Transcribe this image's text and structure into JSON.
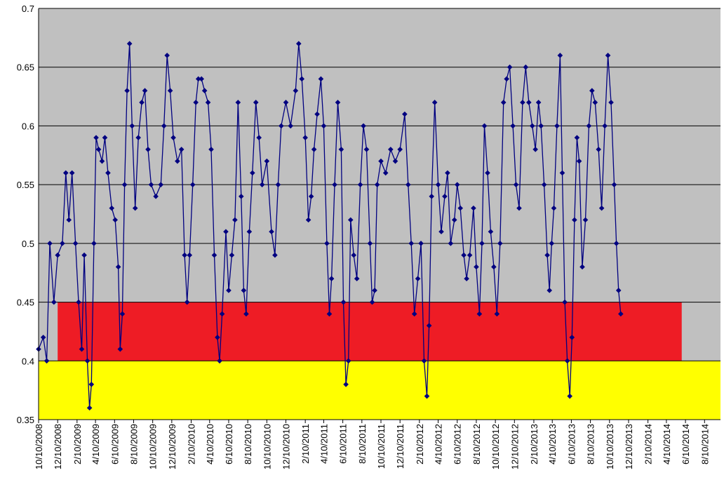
{
  "chart_data": {
    "type": "line",
    "title": "",
    "xlabel": "",
    "ylabel": "",
    "ylim": [
      0.35,
      0.7
    ],
    "y_ticks": [
      "0.35",
      "0.4",
      "0.45",
      "0.5",
      "0.55",
      "0.6",
      "0.65",
      "0.7"
    ],
    "x_range": [
      "2008-10-10",
      "2014-09-30"
    ],
    "x_tick_labels": [
      "10/10/2008",
      "12/10/2008",
      "2/10/2009",
      "4/10/2009",
      "6/10/2009",
      "8/10/2009",
      "10/10/2009",
      "12/10/2009",
      "2/10/2010",
      "4/10/2010",
      "6/10/2010",
      "8/10/2010",
      "10/10/2010",
      "12/10/2010",
      "2/10/2011",
      "4/10/2011",
      "6/10/2011",
      "8/10/2011",
      "10/10/2011",
      "12/10/2011",
      "2/10/2012",
      "4/10/2012",
      "6/10/2012",
      "8/10/2012",
      "10/10/2012",
      "12/10/2012",
      "2/10/2013",
      "4/10/2013",
      "6/10/2013",
      "8/10/2013",
      "10/10/2013",
      "12/10/2013",
      "2/10/2014",
      "4/10/2014",
      "6/10/2014",
      "8/10/2014"
    ],
    "grid": "horizontal",
    "legend": "none",
    "colors": {
      "plot_bg": "#c0c0c0",
      "band_red": "#ee1c25",
      "band_yellow": "#ffff00",
      "series": "#000080",
      "grid": "#000000"
    },
    "bands": [
      {
        "name": "red",
        "y0": 0.4,
        "y1": 0.45,
        "x0": "2008-12-10",
        "x1": "2014-05-29",
        "color": "#ee1c25"
      },
      {
        "name": "yellow",
        "y0": 0.35,
        "y1": 0.4,
        "x0": "2008-10-10",
        "x1": "2014-09-30",
        "color": "#ffff00"
      }
    ],
    "series": [
      {
        "marker": "diamond",
        "points": [
          [
            "2008-10-10",
            0.41
          ],
          [
            "2008-10-25",
            0.42
          ],
          [
            "2008-11-05",
            0.4
          ],
          [
            "2008-11-15",
            0.5
          ],
          [
            "2008-11-28",
            0.45
          ],
          [
            "2008-12-10",
            0.49
          ],
          [
            "2008-12-25",
            0.5
          ],
          [
            "2009-01-05",
            0.56
          ],
          [
            "2009-01-15",
            0.52
          ],
          [
            "2009-01-25",
            0.56
          ],
          [
            "2009-02-05",
            0.5
          ],
          [
            "2009-02-15",
            0.45
          ],
          [
            "2009-02-25",
            0.41
          ],
          [
            "2009-03-05",
            0.49
          ],
          [
            "2009-03-15",
            0.4
          ],
          [
            "2009-03-22",
            0.36
          ],
          [
            "2009-03-28",
            0.38
          ],
          [
            "2009-04-05",
            0.5
          ],
          [
            "2009-04-12",
            0.59
          ],
          [
            "2009-04-20",
            0.58
          ],
          [
            "2009-05-01",
            0.57
          ],
          [
            "2009-05-10",
            0.59
          ],
          [
            "2009-05-20",
            0.56
          ],
          [
            "2009-06-01",
            0.53
          ],
          [
            "2009-06-12",
            0.52
          ],
          [
            "2009-06-22",
            0.48
          ],
          [
            "2009-06-28",
            0.41
          ],
          [
            "2009-07-05",
            0.44
          ],
          [
            "2009-07-12",
            0.55
          ],
          [
            "2009-07-20",
            0.63
          ],
          [
            "2009-07-28",
            0.67
          ],
          [
            "2009-08-05",
            0.6
          ],
          [
            "2009-08-15",
            0.53
          ],
          [
            "2009-08-25",
            0.59
          ],
          [
            "2009-09-05",
            0.62
          ],
          [
            "2009-09-15",
            0.63
          ],
          [
            "2009-09-25",
            0.58
          ],
          [
            "2009-10-05",
            0.55
          ],
          [
            "2009-10-20",
            0.54
          ],
          [
            "2009-11-05",
            0.55
          ],
          [
            "2009-11-15",
            0.6
          ],
          [
            "2009-11-25",
            0.66
          ],
          [
            "2009-12-05",
            0.63
          ],
          [
            "2009-12-15",
            0.59
          ],
          [
            "2009-12-28",
            0.57
          ],
          [
            "2010-01-10",
            0.58
          ],
          [
            "2010-01-20",
            0.49
          ],
          [
            "2010-01-28",
            0.45
          ],
          [
            "2010-02-05",
            0.49
          ],
          [
            "2010-02-15",
            0.55
          ],
          [
            "2010-02-25",
            0.62
          ],
          [
            "2010-03-05",
            0.64
          ],
          [
            "2010-03-15",
            0.64
          ],
          [
            "2010-03-25",
            0.63
          ],
          [
            "2010-04-05",
            0.62
          ],
          [
            "2010-04-15",
            0.58
          ],
          [
            "2010-04-25",
            0.49
          ],
          [
            "2010-05-05",
            0.42
          ],
          [
            "2010-05-12",
            0.4
          ],
          [
            "2010-05-20",
            0.44
          ],
          [
            "2010-06-01",
            0.51
          ],
          [
            "2010-06-10",
            0.46
          ],
          [
            "2010-06-20",
            0.49
          ],
          [
            "2010-06-30",
            0.52
          ],
          [
            "2010-07-10",
            0.62
          ],
          [
            "2010-07-20",
            0.54
          ],
          [
            "2010-07-28",
            0.46
          ],
          [
            "2010-08-05",
            0.44
          ],
          [
            "2010-08-15",
            0.51
          ],
          [
            "2010-08-25",
            0.56
          ],
          [
            "2010-09-05",
            0.62
          ],
          [
            "2010-09-15",
            0.59
          ],
          [
            "2010-09-25",
            0.55
          ],
          [
            "2010-10-10",
            0.57
          ],
          [
            "2010-10-25",
            0.51
          ],
          [
            "2010-11-05",
            0.49
          ],
          [
            "2010-11-15",
            0.55
          ],
          [
            "2010-11-25",
            0.6
          ],
          [
            "2010-12-10",
            0.62
          ],
          [
            "2010-12-25",
            0.6
          ],
          [
            "2011-01-10",
            0.63
          ],
          [
            "2011-01-20",
            0.67
          ],
          [
            "2011-01-30",
            0.64
          ],
          [
            "2011-02-10",
            0.59
          ],
          [
            "2011-02-20",
            0.52
          ],
          [
            "2011-03-01",
            0.54
          ],
          [
            "2011-03-10",
            0.58
          ],
          [
            "2011-03-20",
            0.61
          ],
          [
            "2011-04-01",
            0.64
          ],
          [
            "2011-04-10",
            0.6
          ],
          [
            "2011-04-20",
            0.5
          ],
          [
            "2011-04-28",
            0.44
          ],
          [
            "2011-05-05",
            0.47
          ],
          [
            "2011-05-15",
            0.55
          ],
          [
            "2011-05-25",
            0.62
          ],
          [
            "2011-06-05",
            0.58
          ],
          [
            "2011-06-12",
            0.45
          ],
          [
            "2011-06-20",
            0.38
          ],
          [
            "2011-06-28",
            0.4
          ],
          [
            "2011-07-05",
            0.52
          ],
          [
            "2011-07-15",
            0.49
          ],
          [
            "2011-07-25",
            0.47
          ],
          [
            "2011-08-05",
            0.55
          ],
          [
            "2011-08-15",
            0.6
          ],
          [
            "2011-08-25",
            0.58
          ],
          [
            "2011-09-05",
            0.5
          ],
          [
            "2011-09-12",
            0.45
          ],
          [
            "2011-09-20",
            0.46
          ],
          [
            "2011-09-28",
            0.55
          ],
          [
            "2011-10-10",
            0.57
          ],
          [
            "2011-10-25",
            0.56
          ],
          [
            "2011-11-10",
            0.58
          ],
          [
            "2011-11-25",
            0.57
          ],
          [
            "2011-12-10",
            0.58
          ],
          [
            "2011-12-25",
            0.61
          ],
          [
            "2012-01-05",
            0.55
          ],
          [
            "2012-01-15",
            0.5
          ],
          [
            "2012-01-25",
            0.44
          ],
          [
            "2012-02-05",
            0.47
          ],
          [
            "2012-02-15",
            0.5
          ],
          [
            "2012-02-25",
            0.4
          ],
          [
            "2012-03-05",
            0.37
          ],
          [
            "2012-03-12",
            0.43
          ],
          [
            "2012-03-20",
            0.54
          ],
          [
            "2012-03-30",
            0.62
          ],
          [
            "2012-04-10",
            0.55
          ],
          [
            "2012-04-20",
            0.51
          ],
          [
            "2012-05-01",
            0.54
          ],
          [
            "2012-05-10",
            0.56
          ],
          [
            "2012-05-20",
            0.5
          ],
          [
            "2012-06-01",
            0.52
          ],
          [
            "2012-06-10",
            0.55
          ],
          [
            "2012-06-20",
            0.53
          ],
          [
            "2012-07-01",
            0.49
          ],
          [
            "2012-07-10",
            0.47
          ],
          [
            "2012-07-20",
            0.49
          ],
          [
            "2012-08-01",
            0.53
          ],
          [
            "2012-08-10",
            0.48
          ],
          [
            "2012-08-20",
            0.44
          ],
          [
            "2012-08-28",
            0.5
          ],
          [
            "2012-09-05",
            0.6
          ],
          [
            "2012-09-15",
            0.56
          ],
          [
            "2012-09-25",
            0.51
          ],
          [
            "2012-10-05",
            0.48
          ],
          [
            "2012-10-15",
            0.44
          ],
          [
            "2012-10-25",
            0.5
          ],
          [
            "2012-11-05",
            0.62
          ],
          [
            "2012-11-15",
            0.64
          ],
          [
            "2012-11-25",
            0.65
          ],
          [
            "2012-12-05",
            0.6
          ],
          [
            "2012-12-15",
            0.55
          ],
          [
            "2012-12-25",
            0.53
          ],
          [
            "2013-01-05",
            0.62
          ],
          [
            "2013-01-15",
            0.65
          ],
          [
            "2013-01-25",
            0.62
          ],
          [
            "2013-02-05",
            0.6
          ],
          [
            "2013-02-15",
            0.58
          ],
          [
            "2013-02-25",
            0.62
          ],
          [
            "2013-03-05",
            0.6
          ],
          [
            "2013-03-15",
            0.55
          ],
          [
            "2013-03-25",
            0.49
          ],
          [
            "2013-04-01",
            0.46
          ],
          [
            "2013-04-08",
            0.5
          ],
          [
            "2013-04-15",
            0.53
          ],
          [
            "2013-04-25",
            0.6
          ],
          [
            "2013-05-05",
            0.66
          ],
          [
            "2013-05-12",
            0.56
          ],
          [
            "2013-05-20",
            0.45
          ],
          [
            "2013-05-28",
            0.4
          ],
          [
            "2013-06-05",
            0.37
          ],
          [
            "2013-06-12",
            0.42
          ],
          [
            "2013-06-20",
            0.52
          ],
          [
            "2013-06-28",
            0.59
          ],
          [
            "2013-07-05",
            0.57
          ],
          [
            "2013-07-15",
            0.48
          ],
          [
            "2013-07-25",
            0.52
          ],
          [
            "2013-08-05",
            0.6
          ],
          [
            "2013-08-15",
            0.63
          ],
          [
            "2013-08-25",
            0.62
          ],
          [
            "2013-09-05",
            0.58
          ],
          [
            "2013-09-15",
            0.53
          ],
          [
            "2013-09-25",
            0.6
          ],
          [
            "2013-10-05",
            0.66
          ],
          [
            "2013-10-15",
            0.62
          ],
          [
            "2013-10-25",
            0.55
          ],
          [
            "2013-11-01",
            0.5
          ],
          [
            "2013-11-08",
            0.46
          ],
          [
            "2013-11-15",
            0.44
          ]
        ]
      }
    ]
  }
}
